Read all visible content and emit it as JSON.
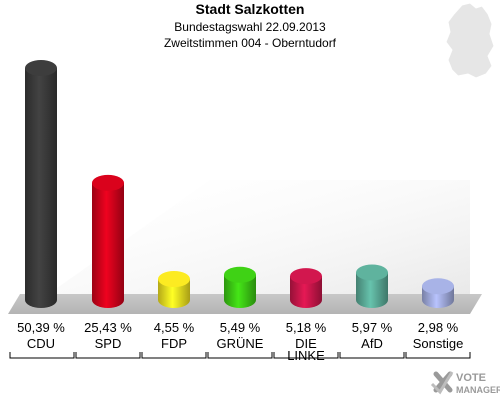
{
  "header": {
    "title": "Stadt Salzkotten",
    "subtitle": "Bundestagswahl 22.09.2013",
    "subtitle2": "Zweitstimmen 004 - Oberntudorf"
  },
  "brand": {
    "line1": "VOTE",
    "line2": "MANAGER"
  },
  "chart_data": {
    "type": "bar",
    "title": "Stadt Salzkotten",
    "categories": [
      "CDU",
      "SPD",
      "FDP",
      "GRÜNE",
      "DIE LINKE",
      "AfD",
      "Sonstige"
    ],
    "category_lines": [
      [
        "CDU"
      ],
      [
        "SPD"
      ],
      [
        "FDP"
      ],
      [
        "GRÜNE"
      ],
      [
        "DIE",
        "LINKE"
      ],
      [
        "AfD"
      ],
      [
        "Sonstige"
      ]
    ],
    "values": [
      50.39,
      25.43,
      4.55,
      5.49,
      5.18,
      5.97,
      2.98
    ],
    "value_labels": [
      "50,39 %",
      "25,43 %",
      "4,55 %",
      "5,49 %",
      "5,18 %",
      "5,97 %",
      "2,98 %"
    ],
    "colors": [
      "#3a3a3a",
      "#d0021b",
      "#f0e020",
      "#3cc814",
      "#c8164a",
      "#5aaa96",
      "#a0aadc"
    ],
    "ylim": [
      0,
      50.39
    ],
    "grid": false,
    "legend": "none"
  }
}
